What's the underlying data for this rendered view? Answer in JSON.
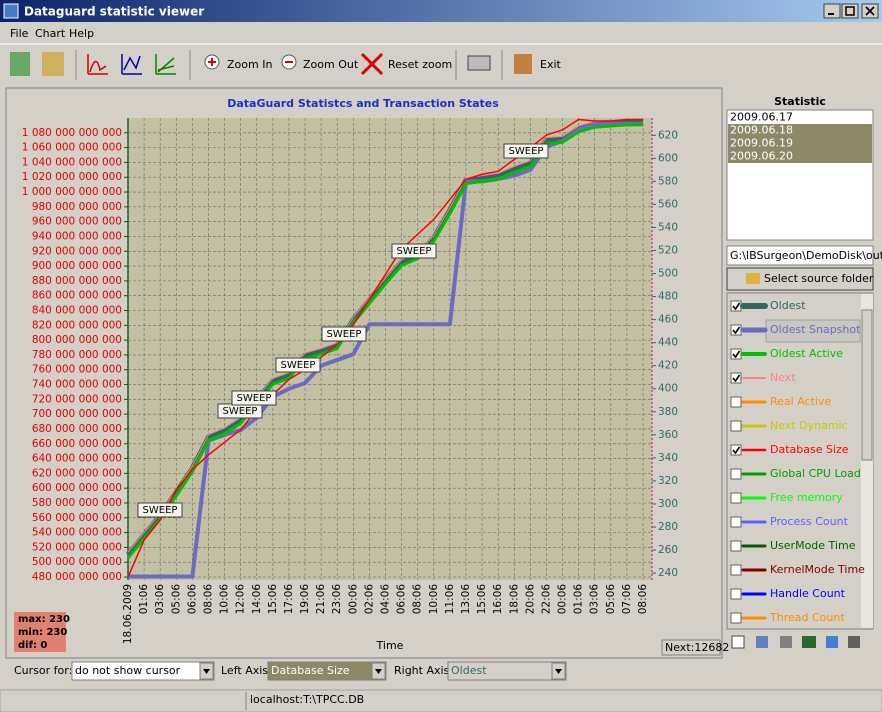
{
  "window": {
    "title": "Dataguard statistic viewer"
  },
  "menu": [
    "File",
    "Chart",
    "Help"
  ],
  "toolbar": [
    "Zoom In",
    "Zoom Out",
    "Reset zoom",
    "Exit"
  ],
  "chart_data": {
    "type": "line",
    "title": "DataGuard Statistcs and Transaction States",
    "xlabel": "Time",
    "categories": [
      "18.06.2009",
      "01:06",
      "03:06",
      "05:06",
      "06:06",
      "08:06",
      "10:06",
      "12:06",
      "14:06",
      "15:06",
      "17:06",
      "19:06",
      "21:06",
      "23:06",
      "00:06",
      "02:06",
      "04:06",
      "06:06",
      "08:06",
      "10:06",
      "11:06",
      "13:06",
      "15:06",
      "16:06",
      "18:06",
      "20:06",
      "22:06",
      "00:06",
      "01:06",
      "03:06",
      "05:06",
      "07:06",
      "08:06"
    ],
    "ylim": [
      476000000000,
      1100000000000
    ],
    "yticks": [
      {
        "value": 480000000000,
        "label": "480 000 000 000"
      },
      {
        "value": 500000000000,
        "label": "500 000 000 000"
      },
      {
        "value": 520000000000,
        "label": "520 000 000 000"
      },
      {
        "value": 540000000000,
        "label": "540 000 000 000"
      },
      {
        "value": 560000000000,
        "label": "560 000 000 000"
      },
      {
        "value": 580000000000,
        "label": "580 000 000 000"
      },
      {
        "value": 600000000000,
        "label": "600 000 000 000"
      },
      {
        "value": 620000000000,
        "label": "620 000 000 000"
      },
      {
        "value": 640000000000,
        "label": "640 000 000 000"
      },
      {
        "value": 660000000000,
        "label": "660 000 000 000"
      },
      {
        "value": 680000000000,
        "label": "680 000 000 000"
      },
      {
        "value": 700000000000,
        "label": "700 000 000 000"
      },
      {
        "value": 720000000000,
        "label": "720 000 000 000"
      },
      {
        "value": 740000000000,
        "label": "740 000 000 000"
      },
      {
        "value": 760000000000,
        "label": "760 000 000 000"
      },
      {
        "value": 780000000000,
        "label": "780 000 000 000"
      },
      {
        "value": 800000000000,
        "label": "800 000 000 000"
      },
      {
        "value": 820000000000,
        "label": "820 000 000 000"
      },
      {
        "value": 840000000000,
        "label": "840 000 000 000"
      },
      {
        "value": 860000000000,
        "label": "860 000 000 000"
      },
      {
        "value": 880000000000,
        "label": "880 000 000 000"
      },
      {
        "value": 900000000000,
        "label": "900 000 000 000"
      },
      {
        "value": 920000000000,
        "label": "920 000 000 000"
      },
      {
        "value": 940000000000,
        "label": "940 000 000 000"
      },
      {
        "value": 960000000000,
        "label": "960 000 000 000"
      },
      {
        "value": 980000000000,
        "label": "980 000 000 000"
      },
      {
        "value": 1000000000000,
        "label": "1 000 000 000 000"
      },
      {
        "value": 1020000000000,
        "label": "1 020 000 000 000"
      },
      {
        "value": 1040000000000,
        "label": "1 040 000 000 000"
      },
      {
        "value": 1060000000000,
        "label": "1 060 000 000 000"
      },
      {
        "value": 1080000000000,
        "label": "1 080 000 000 000"
      }
    ],
    "y2lim": [
      234,
      635
    ],
    "y2ticks": [
      240,
      260,
      280,
      300,
      320,
      340,
      360,
      380,
      400,
      420,
      440,
      460,
      480,
      500,
      520,
      540,
      560,
      580,
      600,
      620
    ],
    "grid": true,
    "series": [
      {
        "name": "Oldest",
        "color": "#2f6666",
        "width": 5,
        "axis": "y2",
        "visible": true,
        "values": [
          256,
          273,
          290,
          310,
          331,
          358,
          364,
          373,
          390,
          407,
          412,
          429,
          433,
          438,
          460,
          477,
          494,
          510,
          516,
          531,
          555,
          581,
          583,
          585,
          591,
          596,
          616,
          617,
          626,
          630,
          631,
          632,
          632
        ]
      },
      {
        "name": "Oldest Snapshot",
        "color": "#6b6bc0",
        "width": 4,
        "axis": "y2",
        "visible": true,
        "values": [
          237,
          237,
          237,
          237,
          237,
          355,
          360,
          364,
          375,
          393,
          400,
          405,
          420,
          425,
          430,
          456,
          456,
          456,
          456,
          456,
          456,
          580,
          580,
          582,
          585,
          590,
          610,
          615,
          625,
          630,
          630,
          630,
          630
        ]
      },
      {
        "name": "Oldest Active",
        "color": "#00c000",
        "width": 3,
        "axis": "y2",
        "visible": true,
        "values": [
          253,
          270,
          287,
          307,
          328,
          355,
          361,
          370,
          387,
          404,
          409,
          426,
          430,
          435,
          457,
          474,
          491,
          507,
          513,
          528,
          552,
          578,
          580,
          582,
          588,
          593,
          613,
          614,
          623,
          627,
          628,
          629,
          629
        ]
      },
      {
        "name": "Next",
        "color": "#ff8080",
        "width": 1,
        "axis": "y2",
        "visible": true,
        "values": [
          258,
          275,
          292,
          312,
          333,
          360,
          366,
          375,
          392,
          409,
          414,
          431,
          435,
          440,
          462,
          479,
          496,
          512,
          518,
          533,
          557,
          583,
          585,
          587,
          593,
          598,
          618,
          619,
          628,
          632,
          633,
          634,
          634
        ]
      },
      {
        "name": "Real Active",
        "color": "#ff8c00",
        "width": 2,
        "visible": false
      },
      {
        "name": "Next Dynamic",
        "color": "#c8c800",
        "width": 2,
        "visible": false
      },
      {
        "name": "Database Size",
        "color": "#ff0000",
        "width": 1.5,
        "axis": "y",
        "visible": true,
        "values": [
          480000000000,
          530000000000,
          557000000000,
          598000000000,
          625000000000,
          645000000000,
          662000000000,
          679000000000,
          706000000000,
          726000000000,
          747000000000,
          760000000000,
          777000000000,
          794000000000,
          821000000000,
          855000000000,
          889000000000,
          923000000000,
          943000000000,
          963000000000,
          990000000000,
          1017000000000,
          1024000000000,
          1028000000000,
          1044000000000,
          1060000000000,
          1077000000000,
          1084000000000,
          1098000000000,
          1096000000000,
          1096000000000,
          1098000000000,
          1098000000000
        ]
      },
      {
        "name": "Global CPU Load",
        "color": "#00a000",
        "width": 2,
        "visible": false
      },
      {
        "name": "Free memory",
        "color": "#00ff00",
        "width": 2,
        "visible": false
      },
      {
        "name": "Process Count",
        "color": "#6060ff",
        "width": 2,
        "visible": false
      },
      {
        "name": "UserMode Time",
        "color": "#006000",
        "width": 2,
        "visible": false
      },
      {
        "name": "KernelMode Time",
        "color": "#800000",
        "width": 2,
        "visible": false
      },
      {
        "name": "Handle Count",
        "color": "#0000ff",
        "width": 2,
        "visible": false
      },
      {
        "name": "Thread Count",
        "color": "#ff8c00",
        "width": 2,
        "visible": false
      }
    ],
    "annotations": [
      "SWEEP",
      "SWEEP",
      "SWEEP",
      "SWEEP",
      "SWEEP",
      "SWEEP",
      "SWEEP"
    ]
  },
  "stats": [
    "max: 230",
    "min: 230",
    "dif: 0"
  ],
  "next_label": "Next:12682",
  "statistic_panel": {
    "title": "Statistic",
    "dates": [
      "2009.06.17",
      "2009.06.18",
      "2009.06.19",
      "2009.06.20"
    ],
    "selected": [
      false,
      true,
      true,
      true
    ],
    "folder": "G:\\IBSurgeon\\DemoDisk\\out\\w",
    "button": "Select source folder"
  },
  "controls": {
    "cursor_label": "Cursor for:",
    "cursor_value": "do not show cursor",
    "left_axis_label": "Left Axis",
    "left_axis_value": "Database Size",
    "right_axis_label": "Right Axis",
    "right_axis_value": "Oldest"
  },
  "status": "localhost:T:\\TPCC.DB"
}
